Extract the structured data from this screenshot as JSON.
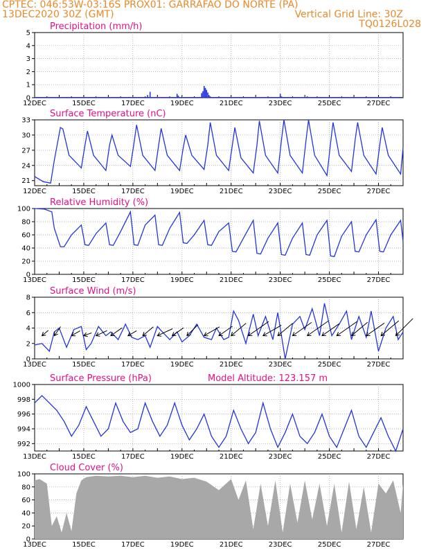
{
  "header": {
    "left_line1": "CPTEC:  046:53W-03:16S  PROX01: GARRAFAO DO NORTE (PA)",
    "left_line2": "13DEC2020 30Z (GMT)",
    "right_line2": "Vertical Grid Line: 30Z",
    "right_line3": "TQ0126L028"
  },
  "colors": {
    "header": "#e8892a",
    "title": "#e0108a",
    "line": "#2233dd",
    "bars": "#2233dd",
    "cloud": "#a8a8a8",
    "grid": "#999999"
  },
  "x_axis": {
    "range_days": [
      0,
      15
    ],
    "tick_labels": [
      "13DEC",
      "15DEC",
      "17DEC",
      "19DEC",
      "21DEC",
      "23DEC",
      "25DEC",
      "27DEC"
    ],
    "tick_days": [
      0,
      2,
      4,
      6,
      8,
      10,
      12,
      14
    ]
  },
  "chart_data": [
    {
      "id": "precip",
      "type": "bar",
      "title": "Precipitation (mm/h)",
      "ylim": [
        0,
        5
      ],
      "yticks": [
        0,
        1,
        2,
        3,
        4,
        5
      ],
      "x_start_label": "12DEC",
      "x": [
        4.6,
        4.7,
        5.8,
        5.85,
        6.8,
        6.85,
        6.9,
        6.95,
        7.0,
        7.05,
        7.1,
        7.15,
        7.2,
        9.0,
        10.0,
        10.05,
        11.1,
        11.15
      ],
      "values": [
        0.2,
        0.45,
        0.3,
        0.15,
        0.35,
        0.5,
        0.9,
        0.75,
        0.6,
        0.4,
        0.2,
        0.1,
        0.05,
        0.05,
        0.3,
        0.1,
        0.1,
        0.05
      ]
    },
    {
      "id": "temp",
      "type": "line",
      "title": "Surface Temperature (nC)",
      "ylim": [
        20,
        33
      ],
      "yticks": [
        21,
        24,
        27,
        30,
        33
      ],
      "x_start_label": "12DEC",
      "x": [
        0.0,
        0.35,
        0.65,
        0.8,
        1.05,
        1.15,
        1.4,
        1.9,
        2.05,
        2.15,
        2.4,
        2.9,
        3.05,
        3.15,
        3.4,
        3.9,
        4.05,
        4.15,
        4.4,
        4.9,
        5.05,
        5.15,
        5.4,
        5.9,
        6.05,
        6.15,
        6.4,
        6.9,
        7.05,
        7.15,
        7.4,
        7.9,
        8.05,
        8.15,
        8.4,
        8.9,
        9.05,
        9.15,
        9.4,
        9.9,
        10.05,
        10.15,
        10.4,
        10.9,
        11.05,
        11.15,
        11.4,
        11.9,
        12.05,
        12.15,
        12.4,
        12.9,
        13.05,
        13.15,
        13.4,
        13.9,
        14.05,
        14.15,
        14.4,
        14.9,
        15.0
      ],
      "values": [
        21.8,
        20.8,
        20.5,
        25.0,
        31.5,
        31.2,
        26.0,
        23.5,
        28.0,
        30.8,
        26.0,
        23.0,
        28.0,
        30.0,
        26.0,
        23.8,
        28.5,
        32.0,
        26.0,
        23.0,
        28.0,
        31.3,
        26.0,
        23.0,
        27.5,
        30.0,
        26.0,
        23.2,
        28.0,
        32.5,
        26.0,
        23.0,
        28.0,
        31.5,
        25.5,
        22.5,
        28.0,
        32.8,
        26.0,
        22.5,
        29.0,
        33.0,
        26.0,
        22.5,
        29.0,
        33.0,
        26.0,
        22.0,
        28.5,
        32.5,
        26.0,
        22.8,
        29.0,
        32.5,
        26.0,
        22.3,
        28.0,
        31.5,
        26.0,
        22.3,
        27.5
      ]
    },
    {
      "id": "rh",
      "type": "line",
      "title": "Relative Humidity (%)",
      "ylim": [
        0,
        100
      ],
      "yticks": [
        0,
        20,
        40,
        60,
        80,
        100
      ],
      "x_start_label": "13DEC",
      "x": [
        0.0,
        0.4,
        0.7,
        0.8,
        1.05,
        1.2,
        1.5,
        1.9,
        2.05,
        2.2,
        2.5,
        2.9,
        3.05,
        3.2,
        3.5,
        3.9,
        4.05,
        4.2,
        4.5,
        4.9,
        5.05,
        5.2,
        5.5,
        5.9,
        6.05,
        6.2,
        6.5,
        6.9,
        7.05,
        7.2,
        7.5,
        7.9,
        8.05,
        8.2,
        8.5,
        8.9,
        9.05,
        9.2,
        9.5,
        9.9,
        10.05,
        10.2,
        10.5,
        10.9,
        11.05,
        11.2,
        11.5,
        11.9,
        12.05,
        12.2,
        12.5,
        12.9,
        13.05,
        13.2,
        13.5,
        13.9,
        14.05,
        14.2,
        14.5,
        14.9,
        15.0
      ],
      "values": [
        100,
        99,
        95,
        70,
        42,
        42,
        60,
        75,
        45,
        44,
        62,
        78,
        45,
        44,
        65,
        95,
        45,
        44,
        75,
        90,
        45,
        44,
        70,
        94,
        48,
        47,
        60,
        82,
        45,
        44,
        65,
        78,
        35,
        34,
        55,
        82,
        32,
        31,
        55,
        78,
        30,
        29,
        55,
        78,
        30,
        29,
        60,
        82,
        28,
        27,
        58,
        80,
        35,
        34,
        60,
        83,
        35,
        34,
        60,
        82,
        50
      ]
    },
    {
      "id": "wind",
      "type": "line",
      "title": "Surface Wind (m/s)",
      "ylim": [
        0,
        8
      ],
      "yticks": [
        0,
        2,
        4,
        6,
        8
      ],
      "x_start_label": "13DEC",
      "x": [
        0.0,
        0.3,
        0.6,
        0.8,
        1.0,
        1.3,
        1.6,
        1.9,
        2.1,
        2.3,
        2.6,
        2.9,
        3.1,
        3.4,
        3.7,
        3.95,
        4.2,
        4.5,
        4.7,
        5.0,
        5.2,
        5.5,
        5.8,
        6.0,
        6.3,
        6.6,
        6.9,
        7.2,
        7.4,
        7.7,
        7.9,
        8.1,
        8.3,
        8.6,
        8.9,
        9.1,
        9.4,
        9.7,
        9.9,
        10.2,
        10.5,
        10.8,
        11.0,
        11.3,
        11.6,
        11.8,
        12.1,
        12.4,
        12.7,
        12.9,
        13.2,
        13.5,
        13.7,
        14.0,
        14.3,
        14.6,
        14.8,
        15.0
      ],
      "values": [
        1.8,
        2.0,
        1.0,
        3.5,
        4.0,
        1.5,
        3.8,
        4.2,
        1.2,
        2.0,
        4.2,
        3.0,
        3.5,
        2.5,
        4.5,
        2.8,
        2.5,
        3.0,
        1.5,
        4.2,
        3.5,
        2.5,
        3.5,
        2.2,
        3.0,
        4.5,
        2.8,
        2.5,
        4.0,
        2.5,
        2.8,
        6.2,
        5.0,
        2.0,
        5.8,
        3.0,
        5.5,
        2.5,
        6.0,
        0.0,
        4.5,
        5.5,
        3.8,
        6.5,
        3.0,
        7.2,
        3.0,
        4.5,
        6.2,
        2.5,
        5.5,
        2.8,
        6.2,
        1.0,
        4.0,
        5.5,
        2.5,
        3.5
      ],
      "vectors": {
        "x": [
          0.3,
          0.8,
          1.5,
          2.0,
          2.5,
          3.1,
          3.8,
          4.4,
          5.0,
          5.6,
          6.2,
          6.9,
          7.5,
          8.0,
          8.7,
          9.3,
          9.9,
          10.5,
          11.1,
          11.7,
          12.3,
          12.9,
          13.5,
          14.1,
          14.7
        ],
        "speed": [
          1.5,
          2.0,
          1.8,
          1.5,
          2.2,
          2.5,
          1.8,
          2.5,
          3.0,
          2.5,
          2.8,
          3.2,
          3.0,
          3.5,
          4.5,
          3.8,
          3.5,
          4.2,
          4.6,
          3.8,
          4.5,
          3.8,
          4.0,
          4.2,
          4.4
        ],
        "dir_deg": [
          220,
          235,
          210,
          200,
          205,
          215,
          210,
          220,
          205,
          215,
          225,
          210,
          215,
          220,
          215,
          210,
          220,
          215,
          215,
          215,
          215,
          220,
          215,
          220,
          225
        ]
      }
    },
    {
      "id": "pres",
      "type": "line",
      "title": "Surface Pressure (hPa)",
      "annotation": "Model Altitude: 123.157  m",
      "ylim": [
        991,
        1000
      ],
      "yticks": [
        992,
        994,
        996,
        998,
        1000
      ],
      "x_start_label": "13DEC",
      "x": [
        0.0,
        0.3,
        0.6,
        0.9,
        1.2,
        1.5,
        1.8,
        2.1,
        2.4,
        2.7,
        3.0,
        3.3,
        3.6,
        3.9,
        4.2,
        4.5,
        4.8,
        5.1,
        5.4,
        5.7,
        6.0,
        6.3,
        6.6,
        6.9,
        7.2,
        7.5,
        7.8,
        8.1,
        8.4,
        8.7,
        9.0,
        9.3,
        9.6,
        9.9,
        10.2,
        10.5,
        10.8,
        11.1,
        11.4,
        11.7,
        12.0,
        12.3,
        12.6,
        12.9,
        13.2,
        13.5,
        13.8,
        14.1,
        14.4,
        14.7,
        15.0
      ],
      "values": [
        997.5,
        998.5,
        997.5,
        996.5,
        995.0,
        993.0,
        994.5,
        997.0,
        995.0,
        993.0,
        994.0,
        997.5,
        995.0,
        993.5,
        994.0,
        997.5,
        995.0,
        993.0,
        994.5,
        997.5,
        994.5,
        992.5,
        994.0,
        996.0,
        993.0,
        991.5,
        993.0,
        996.5,
        994.0,
        992.0,
        993.5,
        997.5,
        994.0,
        991.5,
        993.5,
        996.0,
        993.0,
        992.0,
        993.5,
        996.0,
        993.0,
        991.5,
        994.0,
        996.5,
        993.0,
        991.5,
        993.5,
        995.5,
        993.0,
        991.0,
        994.0
      ]
    },
    {
      "id": "cloud",
      "type": "area",
      "title": "Cloud Cover (%)",
      "ylim": [
        0,
        100
      ],
      "yticks": [
        0,
        20,
        40,
        60,
        80,
        100
      ],
      "x_start_label": "13DEC",
      "x": [
        0.0,
        0.2,
        0.5,
        0.7,
        0.9,
        1.1,
        1.3,
        1.5,
        1.7,
        1.9,
        2.1,
        2.5,
        3.0,
        3.5,
        4.0,
        4.5,
        5.0,
        5.5,
        6.0,
        6.5,
        7.0,
        7.5,
        8.0,
        8.3,
        8.6,
        8.9,
        9.2,
        9.5,
        9.8,
        10.1,
        10.4,
        10.7,
        11.0,
        11.3,
        11.6,
        11.9,
        12.2,
        12.5,
        12.8,
        13.1,
        13.4,
        13.7,
        14.0,
        14.3,
        14.6,
        14.9,
        15.0
      ],
      "values": [
        90,
        92,
        85,
        20,
        35,
        10,
        40,
        12,
        70,
        90,
        95,
        97,
        96,
        97,
        95,
        97,
        94,
        96,
        92,
        94,
        88,
        75,
        92,
        60,
        90,
        15,
        85,
        20,
        90,
        10,
        85,
        25,
        90,
        30,
        85,
        20,
        85,
        10,
        88,
        15,
        80,
        10,
        85,
        70,
        90,
        40,
        85
      ]
    }
  ]
}
